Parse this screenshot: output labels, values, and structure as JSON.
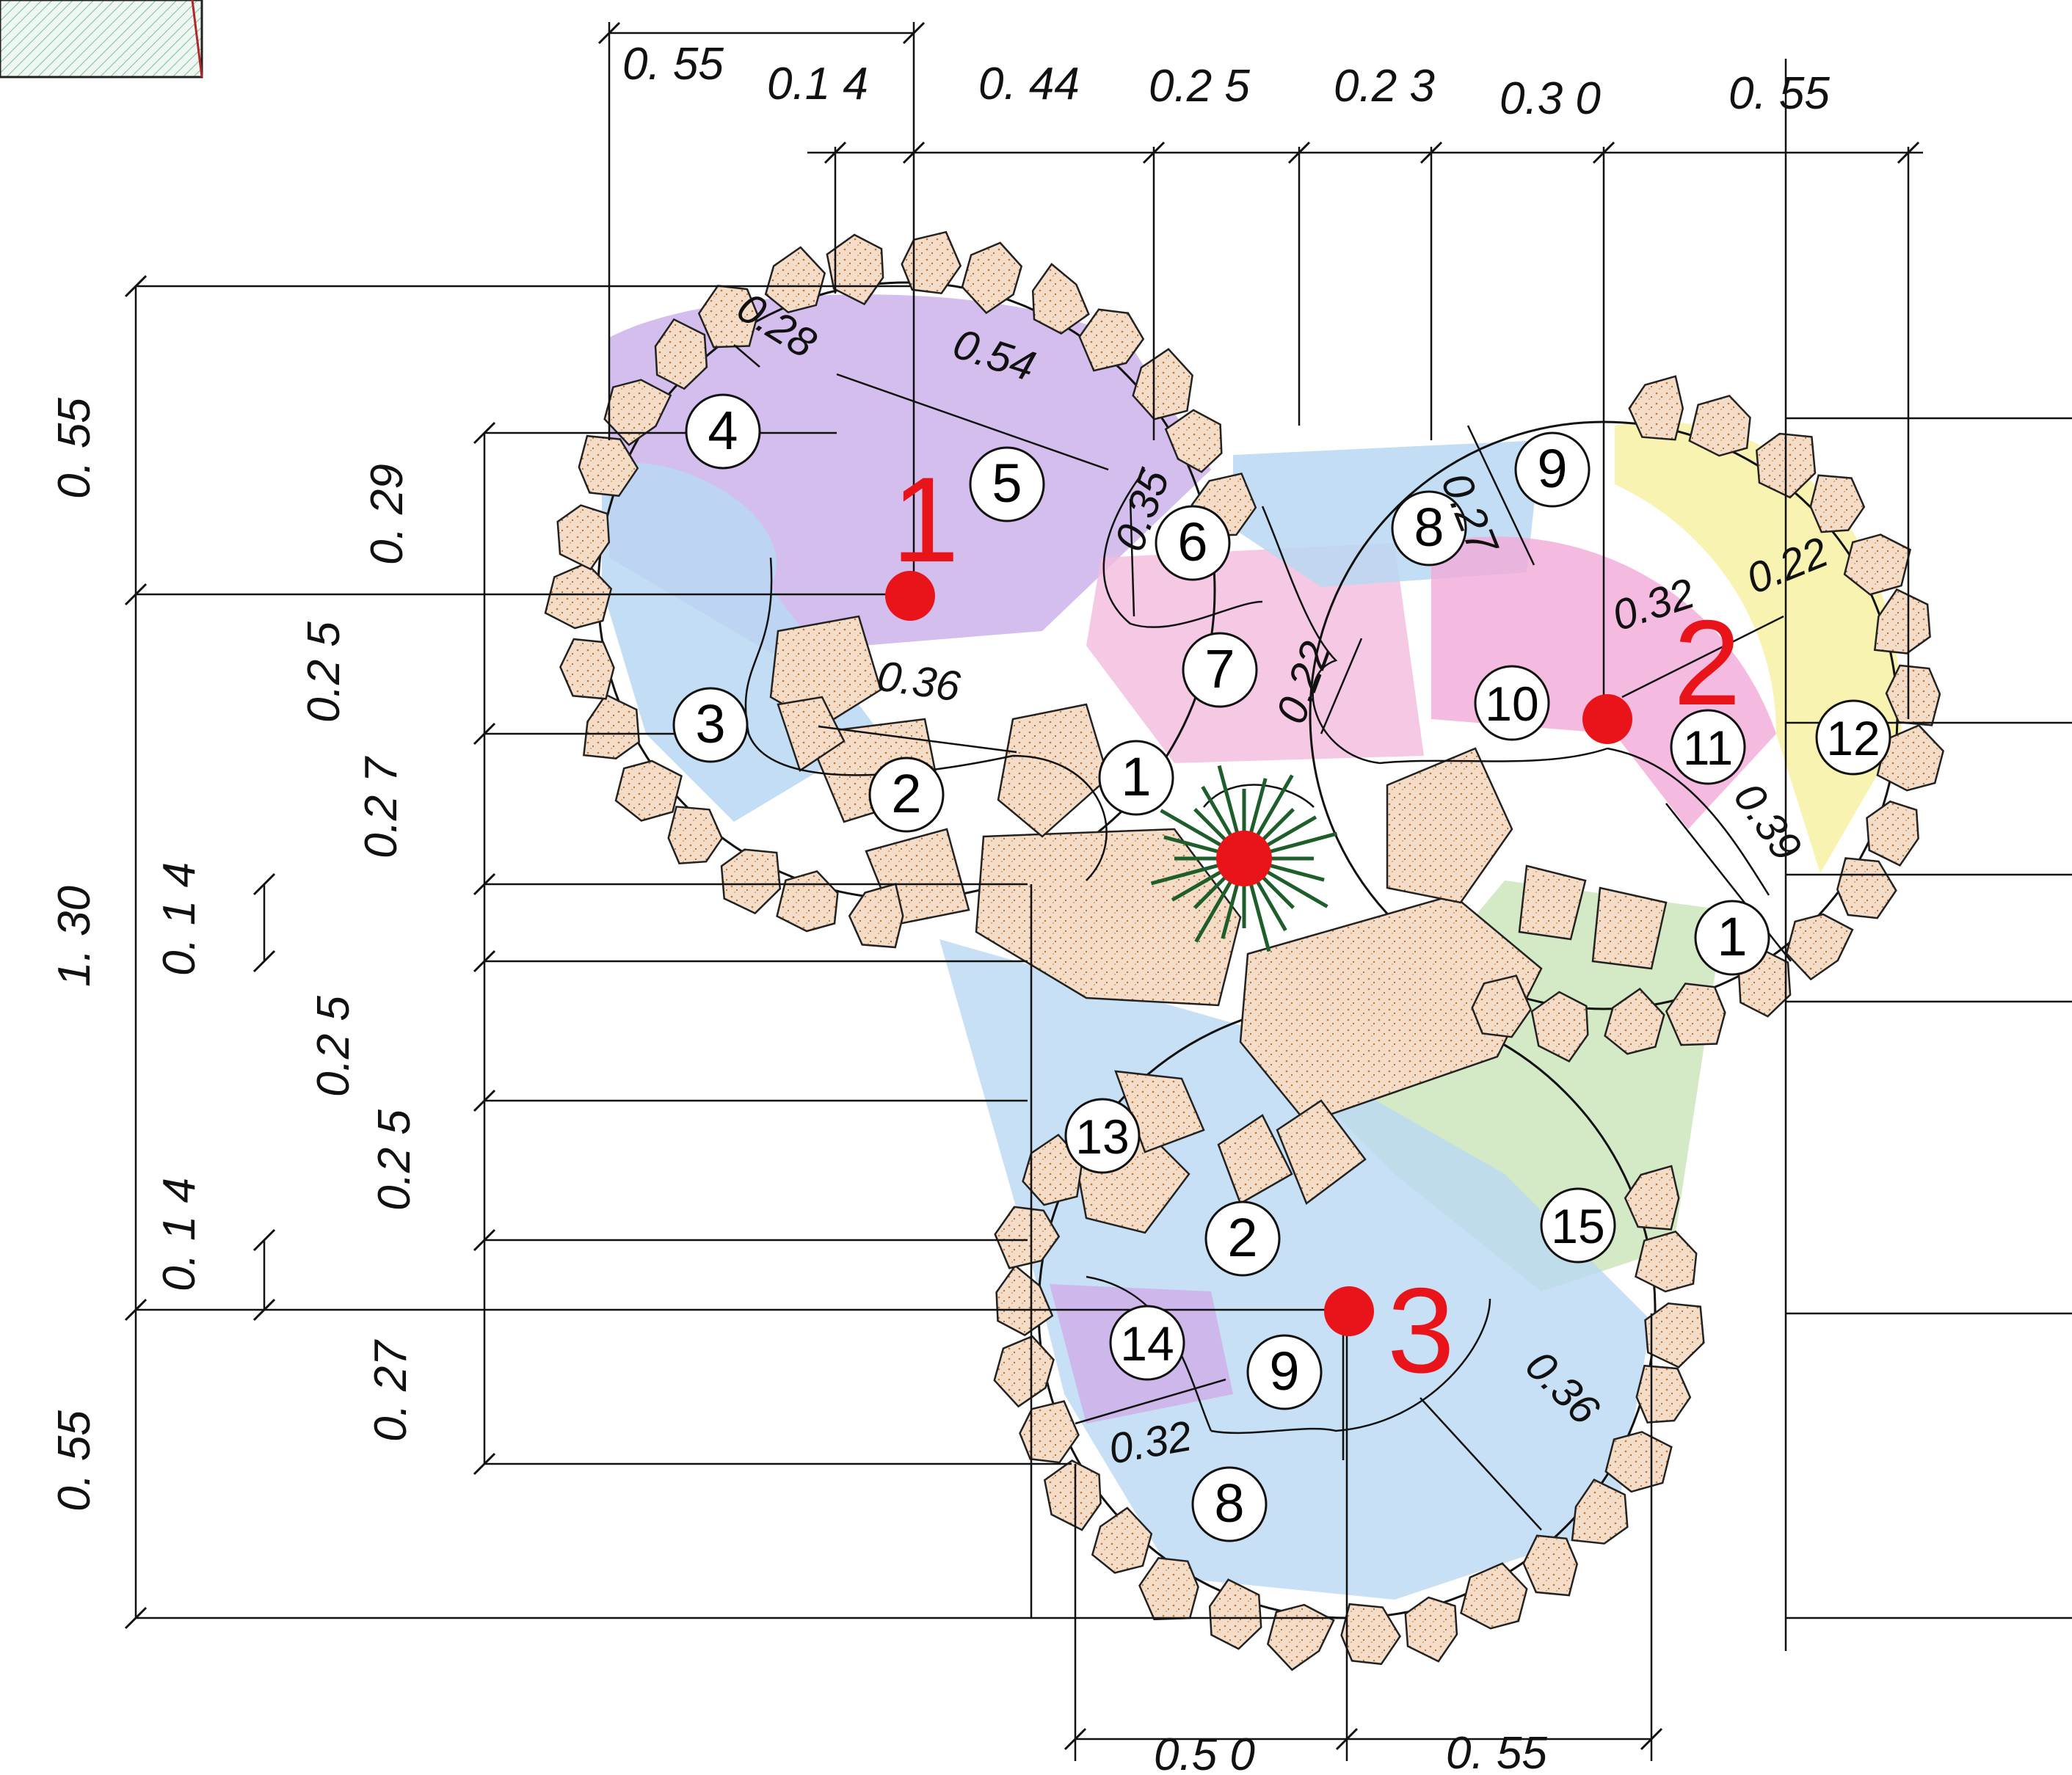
{
  "plan": {
    "top_dims": [
      "0. 55",
      "0.1 4",
      "0. 44",
      "0.2 5",
      "0.2 3",
      "0.3 0",
      "0. 55"
    ],
    "left_dims": [
      "0. 55",
      "0. 29",
      "0.2 5",
      "0.2 7",
      "1. 30",
      "0. 1 4",
      "0.2 5",
      "0.2 5",
      "0. 1 4",
      "0. 55",
      "0. 27"
    ],
    "bottom_dims": [
      "0.5 0",
      "0. 55"
    ],
    "inner_dims": [
      "0.28",
      "0.54",
      "0.35",
      "0.27",
      "0.36",
      "0.22",
      "0.32",
      "0.22",
      "0.39",
      "0.32",
      "0.36"
    ],
    "zone_numbers": [
      "4",
      "5",
      "1",
      "6",
      "8",
      "9",
      "3",
      "7",
      "10",
      "11",
      "12",
      "2",
      "1",
      "13",
      "2",
      "9",
      "15",
      "14",
      "8"
    ],
    "centers": [
      "1",
      "2",
      "3"
    ]
  },
  "colors": {
    "stone_fill": "#f3dcc8",
    "stone_dots": "#c9772e",
    "purple_zone": "#cdb3ea",
    "blue_zone": "#b9d8f2",
    "pink_zone": "#f2bcdc",
    "yellow_zone": "#f7f2a8",
    "green_zone": "#cfe8c0",
    "center_dot": "#e8141a",
    "plant": "#1d5e2a"
  }
}
